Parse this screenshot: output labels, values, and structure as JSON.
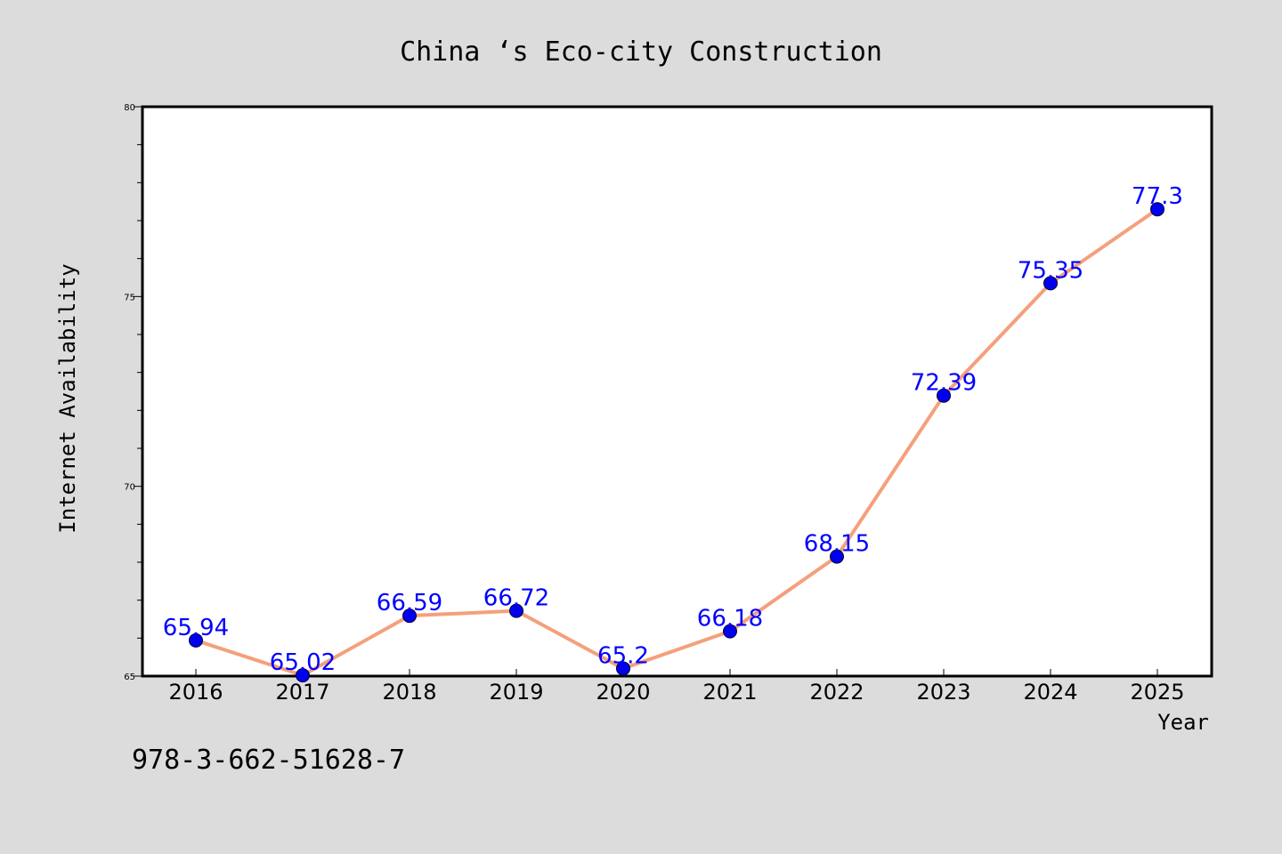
{
  "chart_data": {
    "type": "line",
    "title": "China ‘s Eco-city Construction",
    "xlabel": "Year",
    "ylabel": "Internet Availability",
    "categories": [
      "2016",
      "2017",
      "2018",
      "2019",
      "2020",
      "2021",
      "2022",
      "2023",
      "2024",
      "2025"
    ],
    "series": [
      {
        "values": [
          65.94,
          65.02,
          66.59,
          66.72,
          65.2,
          66.18,
          68.15,
          72.39,
          75.35,
          77.3
        ],
        "labels": [
          "65.94",
          "65.02",
          "66.59",
          "66.72",
          "65.2",
          "66.18",
          "68.15",
          "72.39",
          "75.35",
          "77.3"
        ],
        "line_color": "#f4a07c",
        "marker_color": "#0000ee",
        "label_color": "#0000ff"
      }
    ],
    "ylim": [
      65,
      80
    ],
    "yticks": [
      "65",
      "70",
      "75",
      "80"
    ],
    "grid": false,
    "legend": "none"
  },
  "footnote": "978-3-662-51628-7",
  "colors": {
    "background": "#dcdcdc",
    "plot_background": "#ffffff"
  }
}
